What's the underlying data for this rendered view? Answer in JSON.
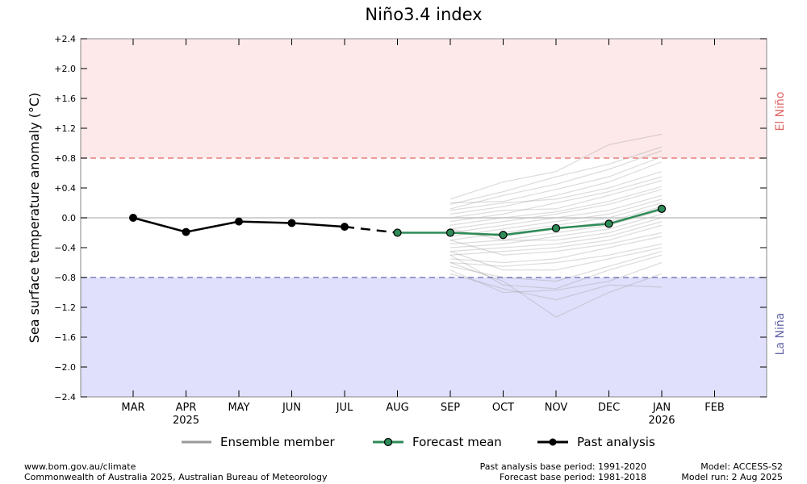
{
  "chart_data": {
    "type": "line",
    "title": "Niño3.4 index",
    "ylabel": "Sea surface temperature anomaly (°C)",
    "ylim": [
      -2.4,
      2.4
    ],
    "yticks": [
      "+2.4",
      "+2.0",
      "+1.6",
      "+1.2",
      "+0.8",
      "+0.4",
      "0.0",
      "−0.4",
      "−0.8",
      "−1.2",
      "−1.6",
      "−2.0",
      "−2.4"
    ],
    "ytick_values": [
      2.4,
      2.0,
      1.6,
      1.2,
      0.8,
      0.4,
      0.0,
      -0.4,
      -0.8,
      -1.2,
      -1.6,
      -2.0,
      -2.4
    ],
    "categories": [
      "MAR",
      "APR",
      "MAY",
      "JUN",
      "JUL",
      "AUG",
      "SEP",
      "OCT",
      "NOV",
      "DEC",
      "JAN",
      "FEB"
    ],
    "year_labels": [
      {
        "month": "APR",
        "year": "2025"
      },
      {
        "month": "JAN",
        "year": "2026"
      }
    ],
    "thresholds": {
      "el_nino": {
        "value": 0.8,
        "label": "El Niño",
        "color": "#e06666",
        "region_color": "#fde9e9"
      },
      "la_nina": {
        "value": -0.8,
        "label": "La Niña",
        "color": "#6666aa",
        "region_color": "#e0e0fc"
      }
    },
    "series": [
      {
        "name": "Past analysis",
        "color": "#000000",
        "x": [
          "MAR",
          "APR",
          "MAY",
          "JUN",
          "JUL"
        ],
        "values": [
          0.0,
          -0.19,
          -0.05,
          -0.07,
          -0.12
        ]
      },
      {
        "name": "Forecast mean",
        "color": "#2e8b57",
        "x": [
          "AUG",
          "SEP",
          "OCT",
          "NOV",
          "DEC",
          "JAN"
        ],
        "values": [
          -0.2,
          -0.2,
          -0.23,
          -0.14,
          -0.08,
          0.12
        ]
      },
      {
        "name": "Ensemble member",
        "color": "#999999",
        "x": [
          "SEP",
          "OCT",
          "NOV",
          "DEC",
          "JAN"
        ],
        "members": [
          [
            0.25,
            0.48,
            0.62,
            0.98,
            1.12
          ],
          [
            0.18,
            0.35,
            0.55,
            0.72,
            0.95
          ],
          [
            0.12,
            0.3,
            0.45,
            0.65,
            0.9
          ],
          [
            0.2,
            0.22,
            0.38,
            0.55,
            0.82
          ],
          [
            0.05,
            0.15,
            0.3,
            0.48,
            0.75
          ],
          [
            0.1,
            0.2,
            0.25,
            0.4,
            0.62
          ],
          [
            -0.05,
            0.05,
            0.2,
            0.35,
            0.55
          ],
          [
            0.0,
            0.1,
            0.12,
            0.3,
            0.5
          ],
          [
            -0.1,
            0.0,
            0.08,
            0.22,
            0.42
          ],
          [
            -0.15,
            -0.05,
            0.05,
            0.18,
            0.38
          ],
          [
            -0.2,
            -0.1,
            0.0,
            0.1,
            0.3
          ],
          [
            -0.25,
            -0.15,
            -0.05,
            0.05,
            0.25
          ],
          [
            -0.3,
            -0.2,
            -0.1,
            0.0,
            0.2
          ],
          [
            -0.2,
            -0.25,
            -0.15,
            -0.05,
            0.15
          ],
          [
            -0.35,
            -0.3,
            -0.2,
            -0.1,
            0.1
          ],
          [
            -0.4,
            -0.35,
            -0.25,
            -0.15,
            0.05
          ],
          [
            -0.15,
            -0.3,
            -0.3,
            -0.2,
            0.0
          ],
          [
            -0.45,
            -0.4,
            -0.35,
            -0.25,
            -0.05
          ],
          [
            -0.5,
            -0.45,
            -0.4,
            -0.3,
            -0.1
          ],
          [
            -0.3,
            -0.5,
            -0.45,
            -0.35,
            -0.2
          ],
          [
            -0.55,
            -0.6,
            -0.55,
            -0.4,
            -0.25
          ],
          [
            -0.6,
            -0.65,
            -0.6,
            -0.5,
            -0.35
          ],
          [
            -0.45,
            -0.7,
            -0.7,
            -0.55,
            -0.4
          ],
          [
            -0.65,
            -0.8,
            -0.85,
            -0.65,
            -0.45
          ],
          [
            -0.5,
            -0.9,
            -0.95,
            -0.7,
            -0.5
          ],
          [
            -0.7,
            -1.0,
            -0.97,
            -0.85,
            -0.6
          ],
          [
            -0.6,
            -0.85,
            -1.33,
            -1.0,
            -0.75
          ],
          [
            -0.75,
            -0.95,
            -1.1,
            -0.9,
            -0.93
          ]
        ]
      }
    ],
    "legend": {
      "placement": "bottom",
      "items": [
        "Ensemble member",
        "Forecast mean",
        "Past analysis"
      ]
    }
  },
  "footer": {
    "url": "www.bom.gov.au/climate",
    "copyright": "Commonwealth of Australia 2025, Australian Bureau of Meteorology",
    "past_base": "Past analysis base period: 1991-2020",
    "forecast_base": "Forecast base period: 1981-2018",
    "model": "Model: ACCESS-S2",
    "model_run": "Model run: 2 Aug 2025"
  }
}
